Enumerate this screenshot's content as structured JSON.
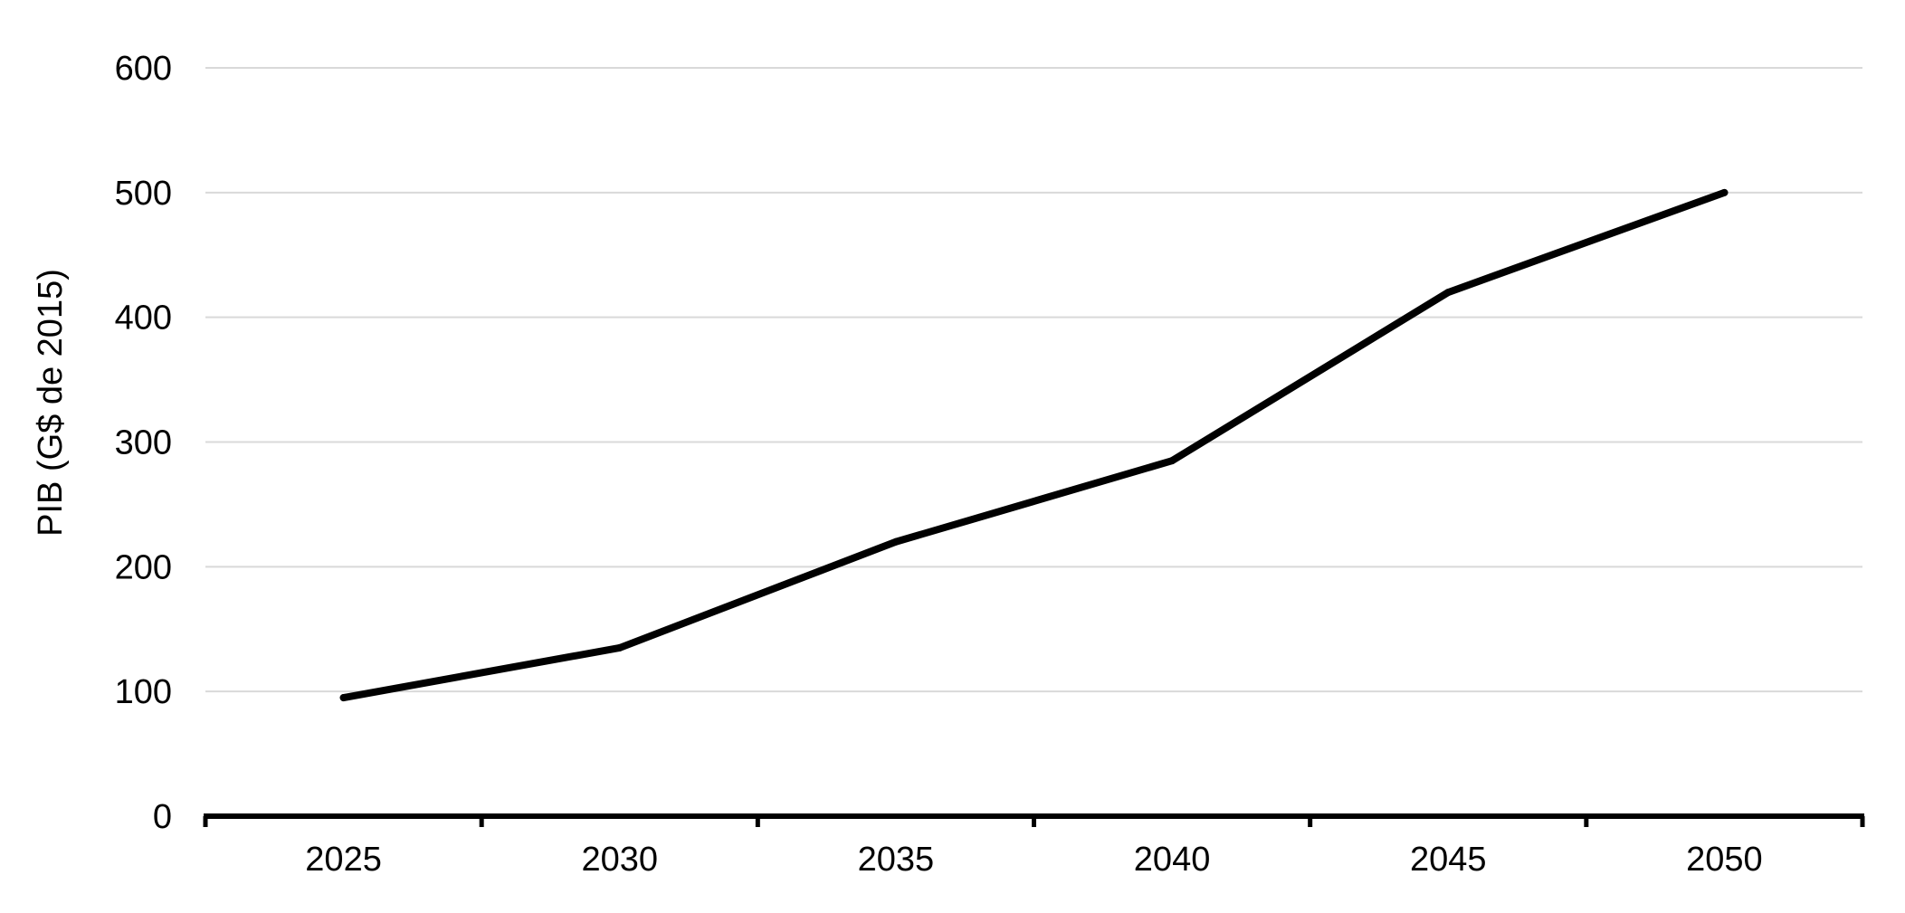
{
  "chart_data": {
    "type": "line",
    "title": "",
    "xlabel": "",
    "ylabel": "PIB (G$ de 2015)",
    "categories": [
      "2025",
      "2030",
      "2035",
      "2040",
      "2045",
      "2050"
    ],
    "series": [
      {
        "values": [
          95,
          135,
          220,
          285,
          420,
          500
        ]
      }
    ],
    "yticks": [
      "0",
      "100",
      "200",
      "300",
      "400",
      "500",
      "600"
    ],
    "ylim": [
      0,
      600
    ],
    "grid": true,
    "legend": "none",
    "colors": {
      "line": "#000000",
      "grid": "#d9d9d9",
      "axis": "#000000"
    }
  }
}
